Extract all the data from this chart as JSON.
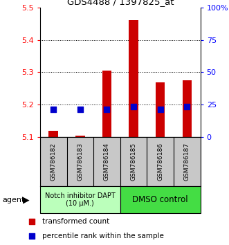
{
  "title": "GDS4488 / 1397825_at",
  "samples": [
    "GSM786182",
    "GSM786183",
    "GSM786184",
    "GSM786185",
    "GSM786186",
    "GSM786187"
  ],
  "red_values": [
    5.12,
    5.105,
    5.305,
    5.46,
    5.27,
    5.275
  ],
  "blue_values": [
    5.185,
    5.185,
    5.185,
    5.195,
    5.185,
    5.195
  ],
  "y_min": 5.1,
  "y_max": 5.5,
  "y_ticks_left": [
    5.1,
    5.2,
    5.3,
    5.4,
    5.5
  ],
  "y_ticks_right_vals": [
    0,
    25,
    50,
    75,
    100
  ],
  "y_ticks_right_labels": [
    "0",
    "25",
    "50",
    "75",
    "100%"
  ],
  "groups": [
    {
      "label": "Notch inhibitor DAPT\n(10 μM.)",
      "color": "#bbffbb",
      "start": 0,
      "end": 3
    },
    {
      "label": "DMSO control",
      "color": "#44dd44",
      "start": 3,
      "end": 6
    }
  ],
  "bar_color": "#cc0000",
  "dot_color": "#0000cc",
  "bar_width": 0.35,
  "dot_size": 30,
  "legend_red": "transformed count",
  "legend_blue": "percentile rank within the sample",
  "agent_label": "agent",
  "bg_color": "#c8c8c8",
  "base_value": 5.1
}
